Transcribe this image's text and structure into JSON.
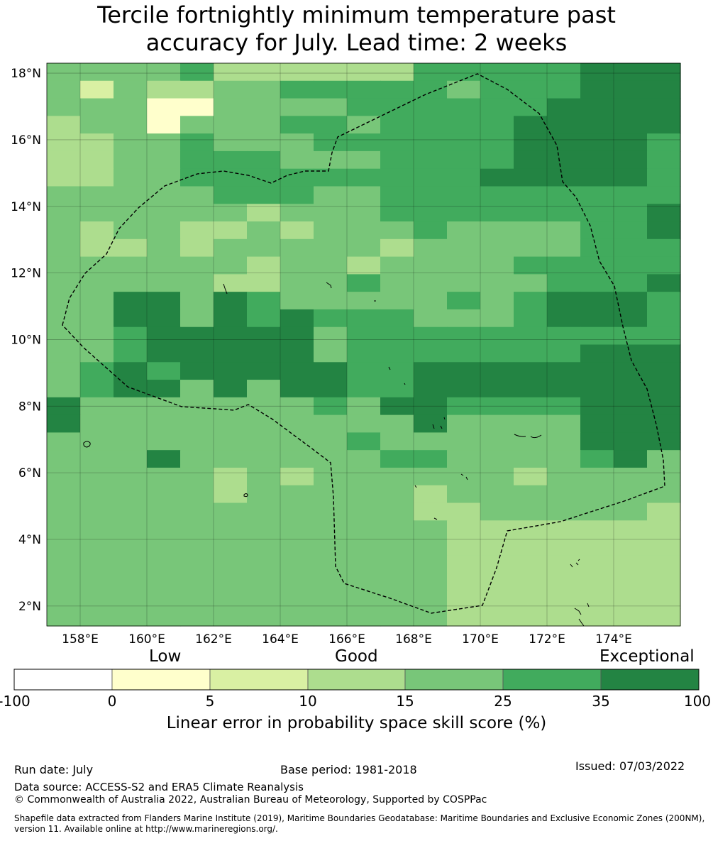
{
  "title": {
    "line1": "Tercile fortnightly minimum temperature past",
    "line2": "accuracy for July. Lead time: 2 weeks"
  },
  "map": {
    "lon_ticks": [
      "158°E",
      "160°E",
      "162°E",
      "164°E",
      "166°E",
      "168°E",
      "170°E",
      "172°E",
      "174°E"
    ],
    "lat_ticks": [
      "18°N",
      "16°N",
      "14°N",
      "12°N",
      "10°N",
      "8°N",
      "6°N",
      "4°N",
      "2°N"
    ],
    "lon_range": [
      157,
      176
    ],
    "lat_range": [
      1.4,
      18.3
    ],
    "grid": true,
    "boundary_style": "dashed",
    "skill_grid_rows_north_to_south": [
      "4444533333355555666",
      "4243344555554555666",
      "4441144445555556666",
      "3441444554555566666",
      "3344544455555566665",
      "3344555444555566665",
      "3344555555555666665",
      "4444455544555555555",
      "4444443444555555556",
      "4344334344454444556",
      "4334344444344444555",
      "4444443443444455555",
      "4444433445444445556",
      "4466465444445456665",
      "4466465655544456665",
      "4456666645555555555",
      "4456666645555555666",
      "4565666665566666666",
      "4566464665566666666",
      "6444444454665555666",
      "6444444444464444666",
      "4444444445444444666",
      "4446444444554444564",
      "4444434344444434444",
      "4444434444434444444",
      "4444444444433444443",
      "4444444444443333333",
      "4444444444443333333",
      "4444444444443333333",
      "4444444444443333333",
      "4444444444443333333",
      "4444444444443333333"
    ]
  },
  "colorbar": {
    "words": [
      "Low",
      "Good",
      "Exceptional"
    ],
    "ticks": [
      "-100",
      "0",
      "5",
      "10",
      "15",
      "25",
      "35",
      "100"
    ],
    "colors": [
      "#ffffff",
      "#ffffcc",
      "#d9f0a3",
      "#addd8e",
      "#78c679",
      "#41ab5d",
      "#238443"
    ],
    "label": "Linear error in probability space skill score (%)"
  },
  "footer": {
    "run_date": "Run date: July",
    "base_period": "Base period: 1981-2018",
    "issued": "Issued: 07/03/2022",
    "data_source": "Data source: ACCESS-S2 and ERA5 Climate Reanalysis",
    "copyright": "© Commonwealth of Australia 2022, Australian Bureau of Meteorology, Supported by COSPPac",
    "shapefile": "Shapefile data extracted from Flanders Marine Institute (2019), Maritime Boundaries Geodatabase: Maritime Boundaries and Exclusive Economic Zones (200NM), version 11. Available online at http://www.marineregions.org/."
  }
}
